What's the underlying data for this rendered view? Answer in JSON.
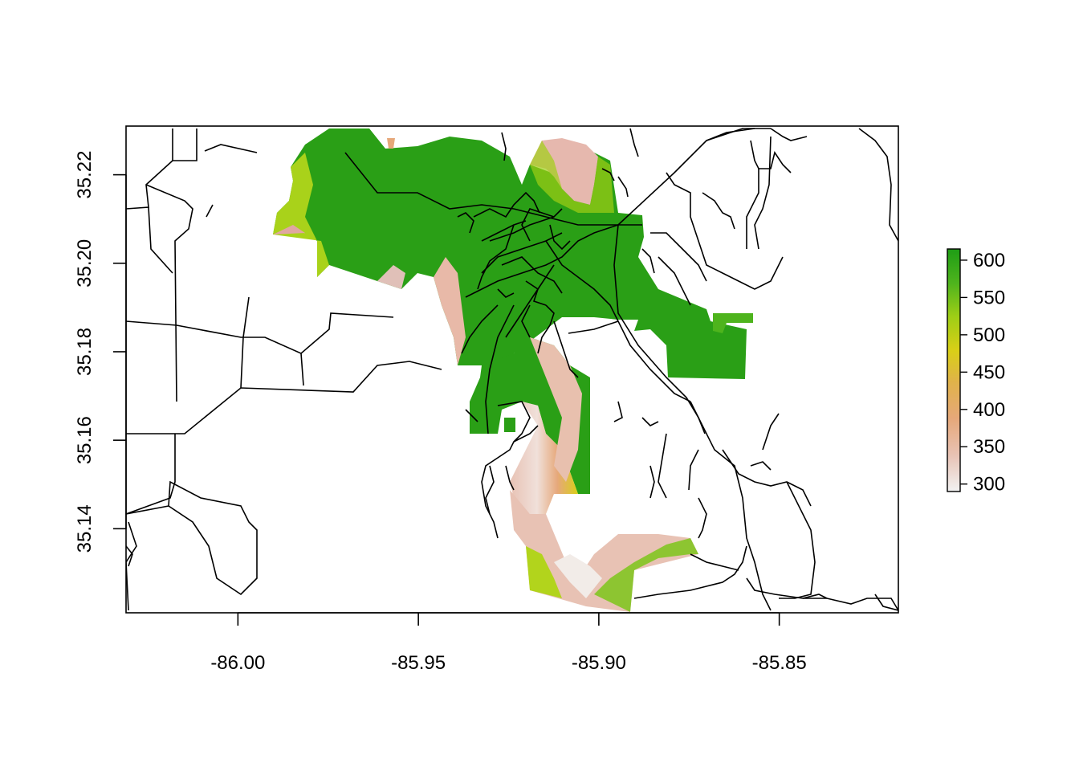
{
  "map": {
    "x_axis": {
      "ticks": [
        {
          "value": -86.0,
          "label": "-86.00"
        },
        {
          "value": -85.95,
          "label": "-85.95"
        },
        {
          "value": -85.9,
          "label": "-85.90"
        },
        {
          "value": -85.85,
          "label": "-85.85"
        }
      ],
      "range": [
        -86.031,
        -85.817
      ]
    },
    "y_axis": {
      "ticks": [
        {
          "value": 35.14,
          "label": "35.14"
        },
        {
          "value": 35.16,
          "label": "35.16"
        },
        {
          "value": 35.18,
          "label": "35.18"
        },
        {
          "value": 35.2,
          "label": "35.20"
        },
        {
          "value": 35.22,
          "label": "35.22"
        }
      ],
      "range": [
        35.121,
        35.231
      ]
    },
    "legend": {
      "min": 290,
      "max": 615,
      "labels": [
        {
          "value": 300,
          "label": "300"
        },
        {
          "value": 350,
          "label": "350"
        },
        {
          "value": 400,
          "label": "400"
        },
        {
          "value": 450,
          "label": "450"
        },
        {
          "value": 500,
          "label": "500"
        },
        {
          "value": 550,
          "label": "550"
        },
        {
          "value": 600,
          "label": "600"
        }
      ],
      "colors": [
        "#f2f2f2",
        "#e8c2b4",
        "#e6a87a",
        "#e0b24a",
        "#d9cf17",
        "#9fce16",
        "#4eb41d",
        "#1e9d15"
      ]
    },
    "layers": [
      "elevation-raster",
      "roads"
    ]
  }
}
